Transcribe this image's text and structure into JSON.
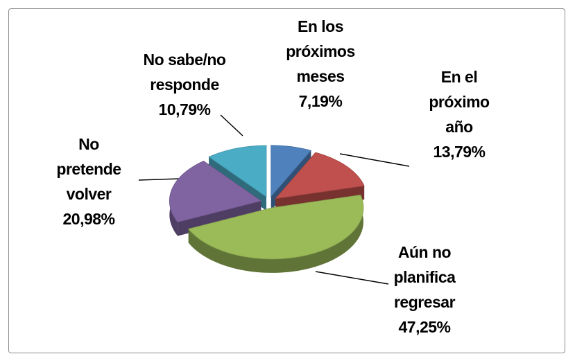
{
  "chart_data": {
    "type": "pie3d",
    "categories": [
      "En los próximos meses",
      "En el próximo año",
      "Aún no planifica regresar",
      "No pretende volver",
      "No sabe/no responde"
    ],
    "values": [
      7.19,
      13.79,
      47.25,
      20.98,
      10.79
    ],
    "value_labels": [
      "7,19%",
      "13,79%",
      "47,25%",
      "20,98%",
      "10,79%"
    ],
    "colors": [
      "#4f81bd",
      "#c0504d",
      "#9bbb59",
      "#8064a2",
      "#4bacc6"
    ]
  }
}
